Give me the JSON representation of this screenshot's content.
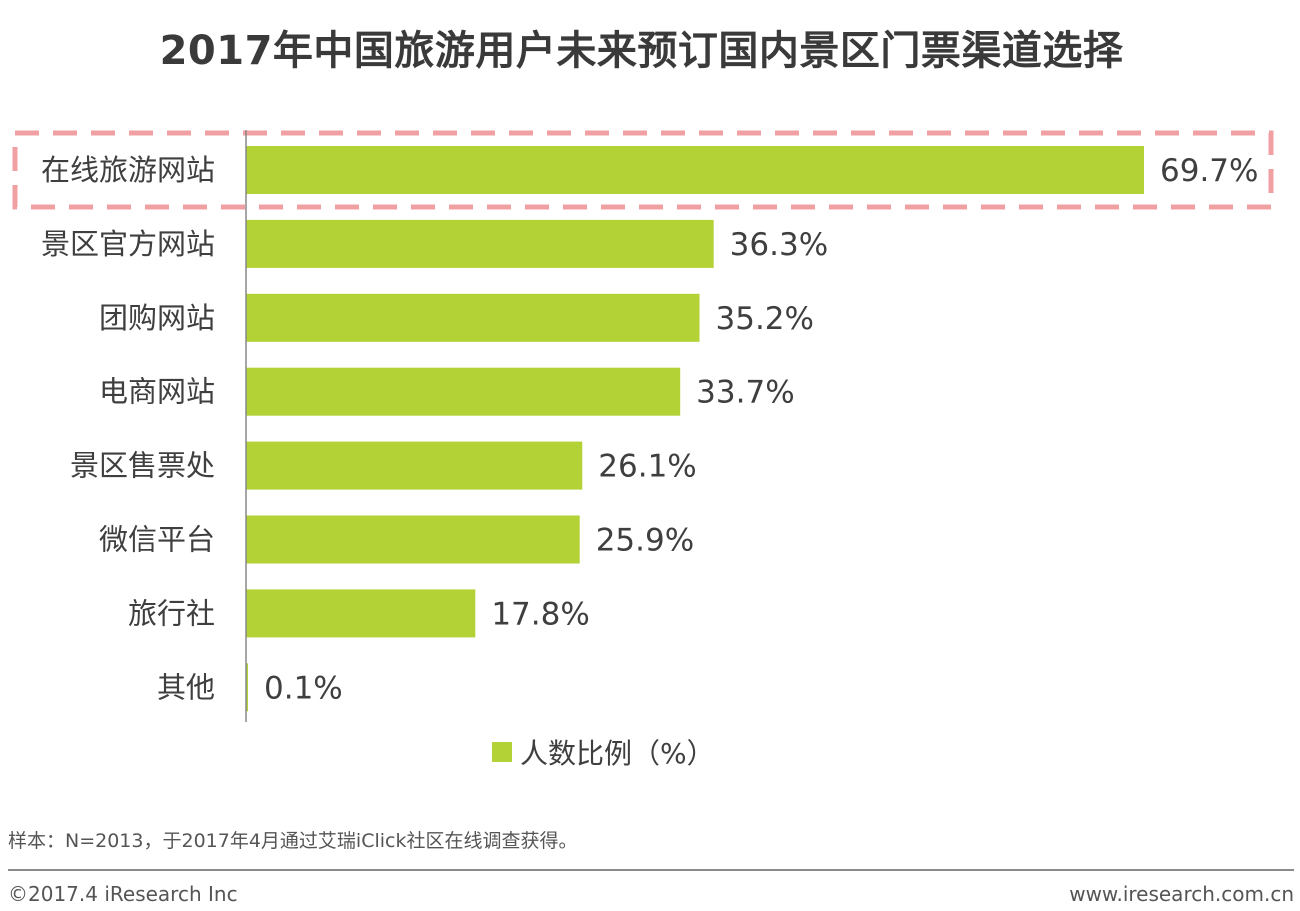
{
  "colors": {
    "bar": "#b2d235",
    "highlight_border": "#f0a0a3",
    "text": "#3f3f3f",
    "axis": "#888888"
  },
  "chart_data": {
    "type": "bar",
    "orientation": "horizontal",
    "title": "2017年中国旅游用户未来预订国内景区门票渠道选择",
    "categories": [
      "在线旅游网站",
      "景区官方网站",
      "团购网站",
      "电商网站",
      "景区售票处",
      "微信平台",
      "旅行社",
      "其他"
    ],
    "series": [
      {
        "name": "人数比例（%）",
        "values": [
          69.7,
          36.3,
          35.2,
          33.7,
          26.1,
          25.9,
          17.8,
          0.1
        ]
      }
    ],
    "value_labels": [
      "69.7%",
      "36.3%",
      "35.2%",
      "33.7%",
      "26.1%",
      "25.9%",
      "17.8%",
      "0.1%"
    ],
    "xlim": [
      0,
      70
    ],
    "highlighted_category": "在线旅游网站",
    "grid": false,
    "legend_position": "bottom-center"
  },
  "legend": {
    "label": "人数比例（%）"
  },
  "footnote": "样本：N=2013，于2017年4月通过艾瑞iClick社区在线调查获得。",
  "footer": {
    "copyright": "©2017.4 iResearch Inc",
    "website": "www.iresearch.com.cn"
  }
}
